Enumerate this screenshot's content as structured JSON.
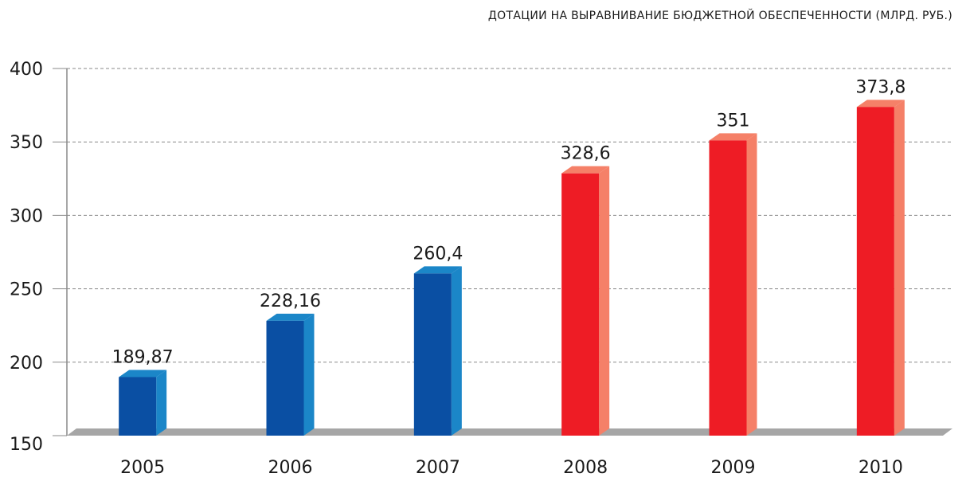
{
  "chart_data": {
    "type": "bar",
    "title": "ДОТАЦИИ НА ВЫРАВНИВАНИЕ БЮДЖЕТНОЙ ОБЕСПЕЧЕННОСТИ (МЛРД. РУБ.)",
    "categories": [
      "2005",
      "2006",
      "2007",
      "2008",
      "2009",
      "2010"
    ],
    "values": [
      189.87,
      228.16,
      260.4,
      328.6,
      351,
      373.8
    ],
    "value_labels": [
      "189,87",
      "228,16",
      "260,4",
      "328,6",
      "351",
      "373,8"
    ],
    "y_ticks": [
      "150",
      "200",
      "250",
      "300",
      "350",
      "400"
    ],
    "ylim": [
      150,
      400
    ],
    "xlabel": "",
    "ylabel": "",
    "grid": true,
    "bar_colors": [
      "#0a4fa3",
      "#0a4fa3",
      "#0a4fa3",
      "#ee1c25",
      "#ee1c25",
      "#ee1c25"
    ],
    "bar_side_colors": [
      "#1b86c8",
      "#1b86c8",
      "#1b86c8",
      "#f58068",
      "#f58068",
      "#f58068"
    ],
    "floor_color": "#a6a6a6"
  }
}
